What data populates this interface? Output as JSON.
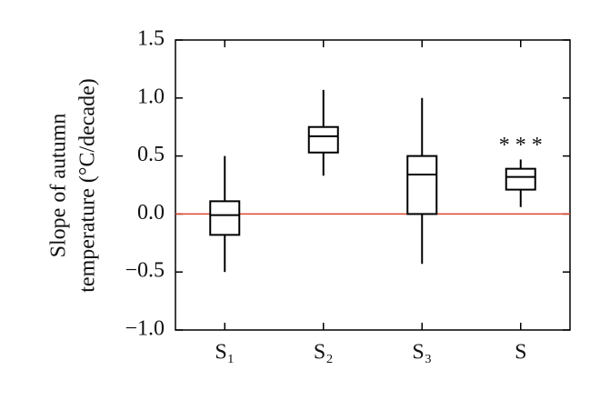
{
  "chart_data": {
    "type": "box",
    "ylabel": [
      "Slope of autumn",
      "temperature (°C/decade)"
    ],
    "categories": [
      "S₁",
      "S₂",
      "S₃",
      "S"
    ],
    "whisker_low": [
      -0.5,
      0.33,
      -0.43,
      0.06
    ],
    "q1": [
      -0.18,
      0.53,
      0.0,
      0.21
    ],
    "median": [
      -0.01,
      0.67,
      0.34,
      0.32
    ],
    "q3": [
      0.11,
      0.75,
      0.5,
      0.39
    ],
    "whisker_high": [
      0.5,
      1.07,
      1.0,
      0.47
    ],
    "color": "#000000",
    "ylim": [
      -1.0,
      1.5
    ],
    "yticks": [
      {
        "value": -1.0,
        "label": "−1.0"
      },
      {
        "value": -0.5,
        "label": "−0.5"
      },
      {
        "value": 0.0,
        "label": "0.0"
      },
      0.5,
      {
        "value": 1.0,
        "label": "1.0"
      },
      1.5
    ],
    "reference_line": {
      "value": 0,
      "color": "#e0442a"
    },
    "annotation": "* * *"
  }
}
